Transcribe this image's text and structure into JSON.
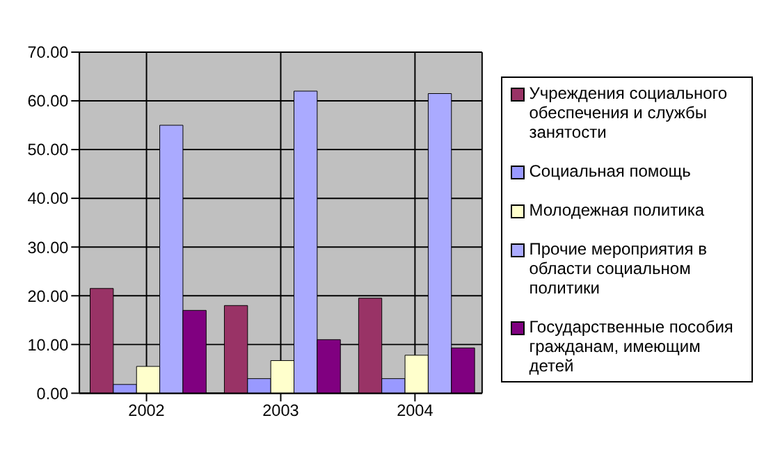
{
  "chart_data": {
    "type": "bar",
    "categories": [
      "2002",
      "2003",
      "2004"
    ],
    "series": [
      {
        "name": "Учреждения социального обеспечения и службы занятости",
        "color": "#993366",
        "values": [
          21.5,
          18,
          19.5
        ]
      },
      {
        "name": "Социальная помощь",
        "color": "#9999ff",
        "values": [
          1.8,
          3,
          3
        ]
      },
      {
        "name": "Молодежная политика",
        "color": "#ffffcc",
        "values": [
          5.5,
          6.7,
          7.8
        ]
      },
      {
        "name": "Прочие мероприятия в области социальном политики",
        "color": "#aaaaff",
        "values": [
          55,
          62,
          61.5
        ]
      },
      {
        "name": "Государственные пособия гражданам, имеющим детей",
        "color": "#800080",
        "values": [
          17,
          11,
          9.3
        ]
      }
    ],
    "ylim": [
      0,
      70
    ],
    "yticks": [
      {
        "value": 0,
        "label": "0.00"
      },
      {
        "value": 10,
        "label": "10.00"
      },
      {
        "value": 20,
        "label": "20.00"
      },
      {
        "value": 30,
        "label": "30.00"
      },
      {
        "value": 40,
        "label": "40.00"
      },
      {
        "value": 50,
        "label": "50.00"
      },
      {
        "value": 60,
        "label": "60.00"
      },
      {
        "value": 70,
        "label": "70.00"
      }
    ],
    "grid": true,
    "legend": "right"
  }
}
